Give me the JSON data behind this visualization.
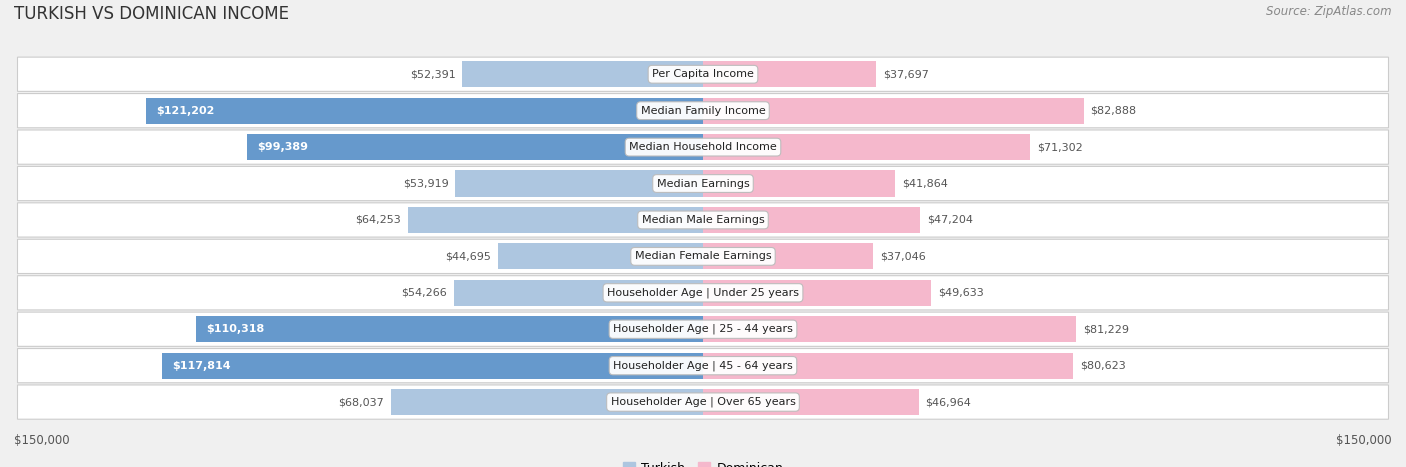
{
  "title": "TURKISH VS DOMINICAN INCOME",
  "source": "Source: ZipAtlas.com",
  "categories": [
    "Per Capita Income",
    "Median Family Income",
    "Median Household Income",
    "Median Earnings",
    "Median Male Earnings",
    "Median Female Earnings",
    "Householder Age | Under 25 years",
    "Householder Age | 25 - 44 years",
    "Householder Age | 45 - 64 years",
    "Householder Age | Over 65 years"
  ],
  "turkish_values": [
    52391,
    121202,
    99389,
    53919,
    64253,
    44695,
    54266,
    110318,
    117814,
    68037
  ],
  "dominican_values": [
    37697,
    82888,
    71302,
    41864,
    47204,
    37046,
    49633,
    81229,
    80623,
    46964
  ],
  "turkish_labels": [
    "$52,391",
    "$121,202",
    "$99,389",
    "$53,919",
    "$64,253",
    "$44,695",
    "$54,266",
    "$110,318",
    "$117,814",
    "$68,037"
  ],
  "dominican_labels": [
    "$37,697",
    "$82,888",
    "$71,302",
    "$41,864",
    "$47,204",
    "$37,046",
    "$49,633",
    "$81,229",
    "$80,623",
    "$46,964"
  ],
  "max_value": 150000,
  "turkish_color_light": "#adc6e0",
  "turkish_color_dark": "#6699cc",
  "dominican_color_light": "#f5b8cc",
  "dominican_color_dark": "#e8507a",
  "label_color_inside": "#ffffff",
  "label_color_outside": "#555555",
  "background_color": "#f0f0f0",
  "row_bg_color": "#ffffff",
  "row_border_color": "#cccccc",
  "legend_turkish": "Turkish",
  "legend_dominican": "Dominican",
  "xlabel_left": "$150,000",
  "xlabel_right": "$150,000",
  "threshold": 90000
}
